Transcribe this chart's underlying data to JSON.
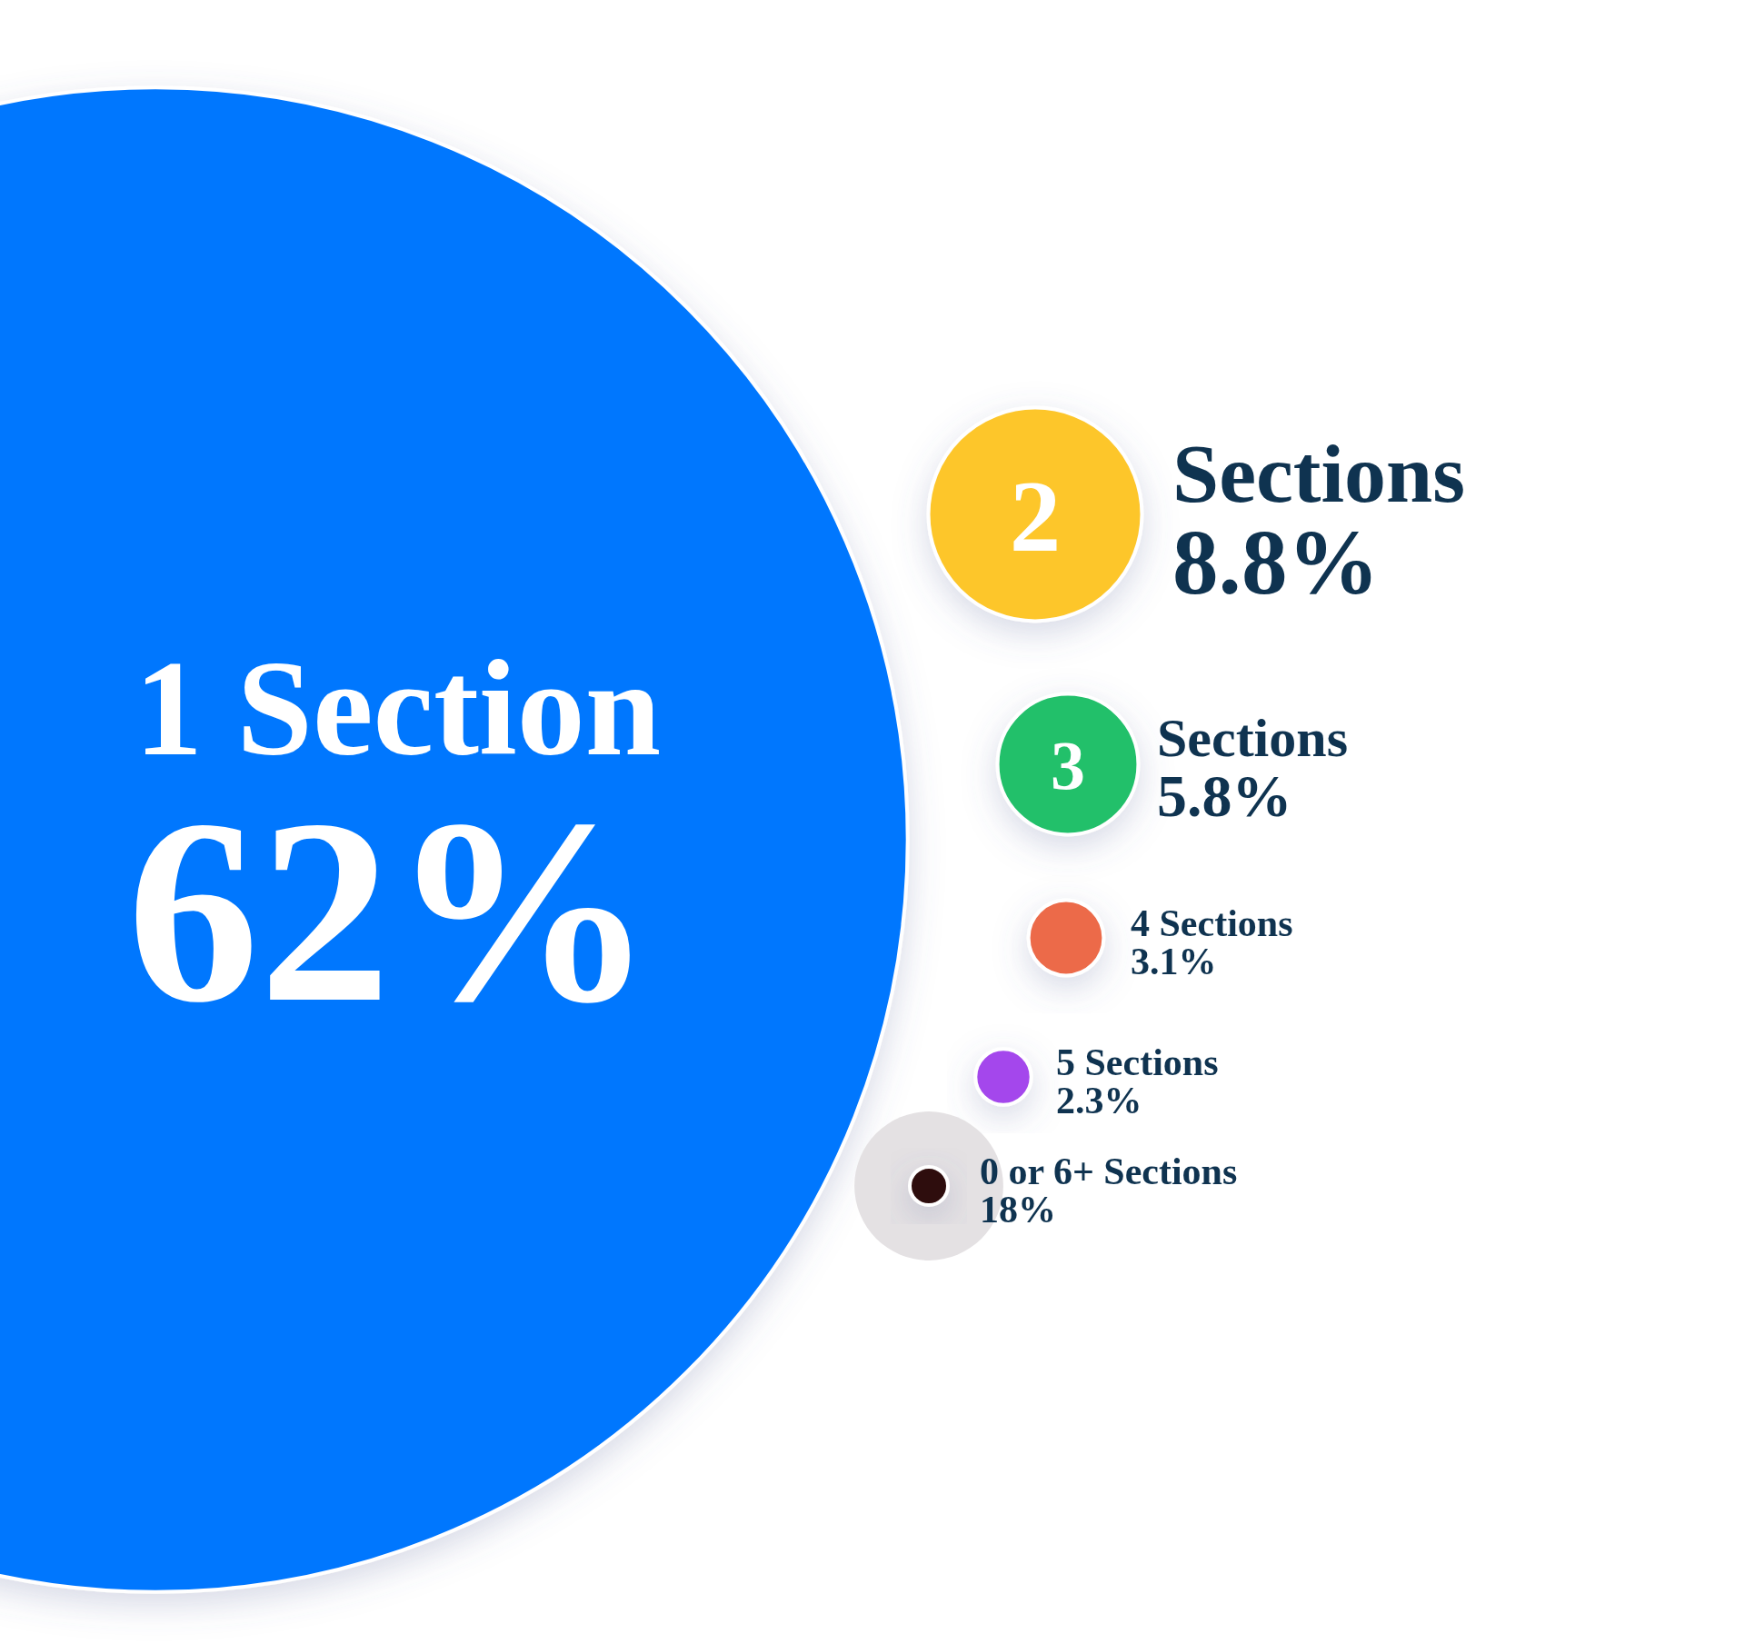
{
  "chart_data": {
    "type": "other",
    "categories": [
      "1 Section",
      "2 Sections",
      "3 Sections",
      "4 Sections",
      "5 Sections",
      "0 or 6+ Sections"
    ],
    "values": [
      62,
      8.8,
      5.8,
      3.1,
      2.3,
      18
    ],
    "value_labels": [
      "62%",
      "8.8%",
      "5.8%",
      "3.1%",
      "2.3%",
      "18%"
    ],
    "colors": [
      "#0477fe",
      "#fdc62c",
      "#20c06a",
      "#ec6a48",
      "#a447ec",
      "#2e0a0a"
    ]
  }
}
